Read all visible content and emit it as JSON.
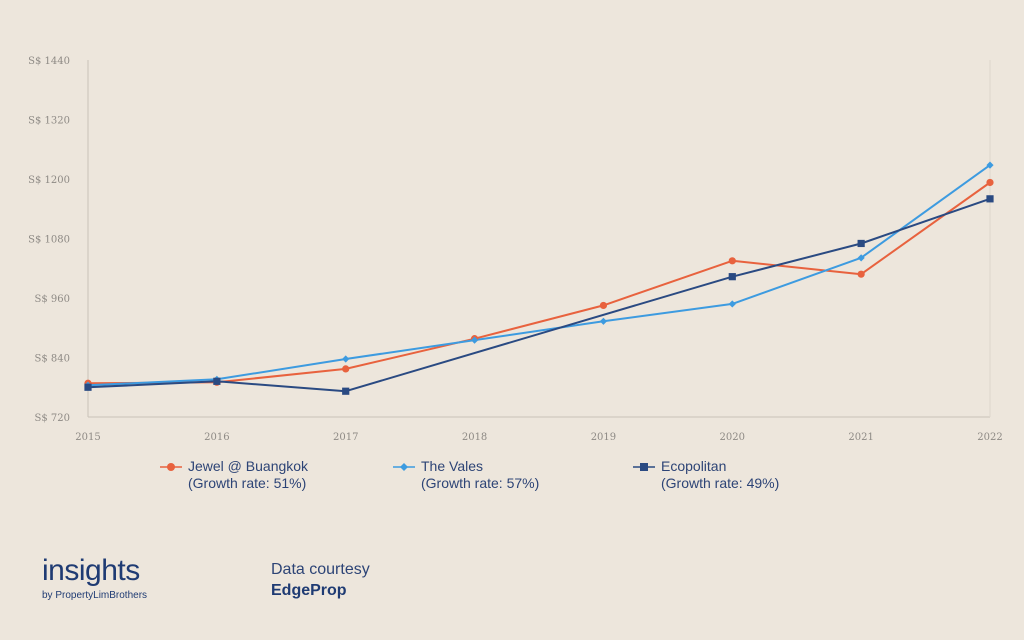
{
  "chart_data": {
    "type": "line",
    "x": [
      "2015",
      "2016",
      "2017",
      "2018",
      "2019",
      "2020",
      "2021",
      "2022"
    ],
    "ylim": [
      720,
      1440
    ],
    "yticks": [
      720,
      840,
      960,
      1080,
      1200,
      1320,
      1440
    ],
    "ytick_labels": [
      "S$ 720",
      "S$ 840",
      "S$ 960",
      "S$ 1080",
      "S$ 1200",
      "S$ 1320",
      "S$ 1440"
    ],
    "grid": false,
    "legend_position": "bottom",
    "series": [
      {
        "name": "Jewel @ Buangkok",
        "note": "(Growth rate: 51%)",
        "marker": "circle",
        "color": "#e8623e",
        "values": [
          788,
          790,
          817,
          878,
          945,
          1035,
          1008,
          1193
        ]
      },
      {
        "name": "The Vales",
        "note": "(Growth rate: 57%)",
        "marker": "diamond",
        "color": "#3d9be0",
        "values": [
          784,
          796,
          837,
          875,
          913,
          948,
          1041,
          1228
        ]
      },
      {
        "name": "Ecopolitan",
        "note": "(Growth rate: 49%)",
        "marker": "square",
        "color": "#2a4a82",
        "values": [
          780,
          792,
          772,
          null,
          null,
          1003,
          1070,
          1160
        ]
      }
    ]
  },
  "footer": {
    "brand": "insights",
    "brand_sub": "by PropertyLimBrothers",
    "courtesy_label": "Data courtesy",
    "courtesy_source": "EdgeProp"
  }
}
